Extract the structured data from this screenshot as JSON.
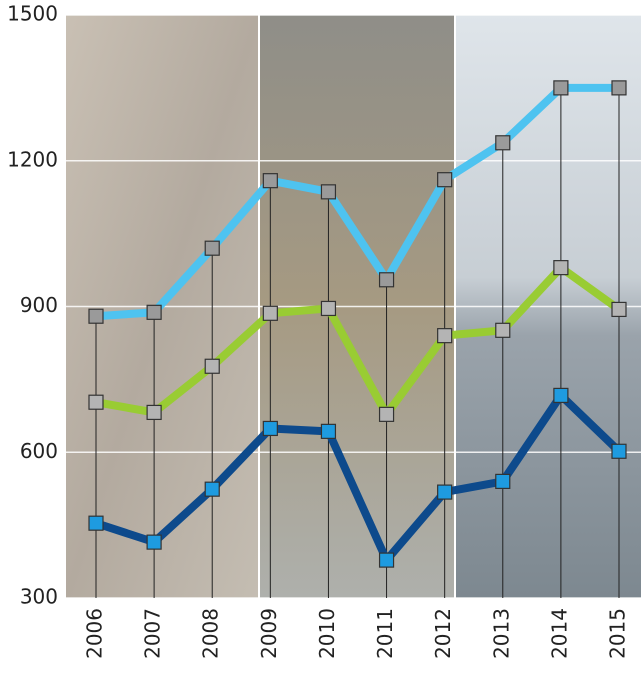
{
  "chart_data": {
    "type": "line",
    "categories": [
      "2006",
      "2007",
      "2008",
      "2009",
      "2010",
      "2011",
      "2012",
      "2013",
      "2014",
      "2015"
    ],
    "series": [
      {
        "color": "#4ec3f0",
        "marker_color": "#9a9a9a",
        "values": [
          880,
          888,
          1020,
          1159,
          1136,
          955,
          1161,
          1237,
          1350,
          1350
        ]
      },
      {
        "color": "#99cc33",
        "marker_color": "#b4b4b4",
        "values": [
          703,
          682,
          777,
          886,
          896,
          678,
          840,
          851,
          980,
          894
        ]
      },
      {
        "color": "#0d4a8c",
        "marker_color": "#1e9be0",
        "values": [
          454,
          415,
          524,
          649,
          643,
          378,
          518,
          540,
          717,
          602
        ]
      }
    ],
    "ylim": [
      300,
      1500
    ],
    "yticks": [
      300,
      600,
      900,
      1200,
      1500
    ],
    "grid": true
  }
}
